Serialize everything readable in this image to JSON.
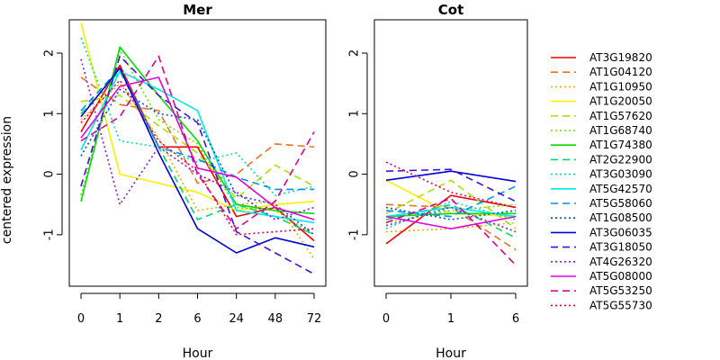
{
  "chart_data": {
    "type": "line",
    "ylabel": "centered expression",
    "xlabel": "Hour",
    "ylim": [
      -1.85,
      2.55
    ],
    "legend_position": "right",
    "series_styles": [
      {
        "name": "AT3G19820",
        "color": "#ee0000",
        "dash": "solid"
      },
      {
        "name": "AT1G04120",
        "color": "#f07020",
        "dash": "long"
      },
      {
        "name": "AT1G10950",
        "color": "#f0b000",
        "dash": "dot"
      },
      {
        "name": "AT1G20050",
        "color": "#f8f000",
        "dash": "solid"
      },
      {
        "name": "AT1G57620",
        "color": "#b0e000",
        "dash": "long"
      },
      {
        "name": "AT1G68740",
        "color": "#70dd00",
        "dash": "dot"
      },
      {
        "name": "AT1G74380",
        "color": "#00dd00",
        "dash": "solid"
      },
      {
        "name": "AT2G22900",
        "color": "#00d870",
        "dash": "long"
      },
      {
        "name": "AT3G03090",
        "color": "#00e0b0",
        "dash": "dot"
      },
      {
        "name": "AT5G42570",
        "color": "#00e8e8",
        "dash": "solid"
      },
      {
        "name": "AT5G58060",
        "color": "#0090f0",
        "dash": "long"
      },
      {
        "name": "AT1G08500",
        "color": "#0050e0",
        "dash": "dot"
      },
      {
        "name": "AT3G06035",
        "color": "#0000dd",
        "dash": "solid"
      },
      {
        "name": "AT3G18050",
        "color": "#4010e0",
        "dash": "long"
      },
      {
        "name": "AT4G26320",
        "color": "#8a18e0",
        "dash": "dot"
      },
      {
        "name": "AT5G08000",
        "color": "#e000e0",
        "dash": "solid"
      },
      {
        "name": "AT5G53250",
        "color": "#e00090",
        "dash": "long"
      },
      {
        "name": "AT5G55730",
        "color": "#e00050",
        "dash": "dot"
      }
    ],
    "panels": [
      {
        "title": "Mer",
        "x": [
          "0",
          "1",
          "2",
          "6",
          "24",
          "48",
          "72"
        ],
        "y_ticks": [
          -1,
          0,
          1,
          2
        ],
        "series": [
          {
            "name": "AT3G19820",
            "values": [
              0.7,
              1.8,
              0.45,
              0.45,
              -0.7,
              -0.55,
              -1.1
            ]
          },
          {
            "name": "AT1G04120",
            "values": [
              1.6,
              1.15,
              1.05,
              -0.15,
              0.0,
              0.5,
              0.45
            ]
          },
          {
            "name": "AT1G10950",
            "values": [
              0.9,
              1.5,
              0.6,
              -0.6,
              -0.5,
              -0.45,
              -1.4
            ]
          },
          {
            "name": "AT1G20050",
            "values": [
              2.5,
              0.0,
              -0.15,
              -0.3,
              -0.6,
              -0.5,
              -0.45
            ]
          },
          {
            "name": "AT1G57620",
            "values": [
              1.2,
              1.3,
              0.8,
              0.35,
              -0.4,
              0.15,
              -0.2
            ]
          },
          {
            "name": "AT1G68740",
            "values": [
              -0.35,
              2.05,
              0.9,
              0.5,
              -0.55,
              -0.6,
              -1.0
            ]
          },
          {
            "name": "AT1G74380",
            "values": [
              -0.45,
              2.1,
              1.3,
              0.55,
              -0.5,
              -0.6,
              -0.65
            ]
          },
          {
            "name": "AT2G22900",
            "values": [
              1.0,
              1.7,
              0.45,
              -0.75,
              -0.5,
              -0.7,
              -1.0
            ]
          },
          {
            "name": "AT3G03090",
            "values": [
              2.25,
              0.55,
              0.45,
              0.2,
              0.35,
              -0.35,
              -0.2
            ]
          },
          {
            "name": "AT5G42570",
            "values": [
              0.4,
              1.7,
              1.4,
              1.05,
              -0.6,
              -0.7,
              -0.8
            ]
          },
          {
            "name": "AT5G58060",
            "values": [
              1.05,
              1.75,
              0.45,
              0.25,
              -0.05,
              -0.25,
              -0.25
            ]
          },
          {
            "name": "AT1G08500",
            "values": [
              0.3,
              1.4,
              1.0,
              0.9,
              -0.35,
              -0.5,
              -1.0
            ]
          },
          {
            "name": "AT3G06035",
            "values": [
              0.95,
              1.75,
              0.35,
              -0.9,
              -1.3,
              -1.05,
              -1.2
            ]
          },
          {
            "name": "AT3G18050",
            "values": [
              -0.2,
              1.95,
              1.3,
              0.85,
              -0.95,
              -1.3,
              -1.65
            ]
          },
          {
            "name": "AT4G26320",
            "values": [
              1.9,
              -0.5,
              0.45,
              0.0,
              -0.3,
              -0.75,
              -0.55
            ]
          },
          {
            "name": "AT5G08000",
            "values": [
              0.6,
              1.45,
              1.6,
              0.1,
              -0.05,
              -0.55,
              -0.75
            ]
          },
          {
            "name": "AT5G53250",
            "values": [
              0.55,
              0.95,
              1.95,
              0.0,
              -0.9,
              -0.45,
              0.7
            ]
          },
          {
            "name": "AT5G55730",
            "values": [
              0.85,
              1.55,
              0.55,
              0.05,
              -1.0,
              -0.95,
              -0.9
            ]
          }
        ]
      },
      {
        "title": "Cot",
        "x": [
          "0",
          "1",
          "6"
        ],
        "y_ticks": [
          -1,
          0,
          1,
          2
        ],
        "series": [
          {
            "name": "AT3G19820",
            "values": [
              -1.15,
              -0.35,
              -0.55
            ]
          },
          {
            "name": "AT1G04120",
            "values": [
              -0.5,
              -0.55,
              -1.25
            ]
          },
          {
            "name": "AT1G10950",
            "values": [
              -0.95,
              -0.9,
              -0.8
            ]
          },
          {
            "name": "AT1G20050",
            "values": [
              -0.1,
              -0.65,
              -0.7
            ]
          },
          {
            "name": "AT1G57620",
            "values": [
              -0.65,
              -0.1,
              -0.9
            ]
          },
          {
            "name": "AT1G68740",
            "values": [
              -0.8,
              -0.6,
              -0.5
            ]
          },
          {
            "name": "AT1G74380",
            "values": [
              -0.7,
              -0.65,
              -0.65
            ]
          },
          {
            "name": "AT2G22900",
            "values": [
              -0.75,
              -0.5,
              -1.05
            ]
          },
          {
            "name": "AT3G03090",
            "values": [
              -0.9,
              -0.45,
              -0.75
            ]
          },
          {
            "name": "AT5G42570",
            "values": [
              -0.7,
              -0.55,
              -0.7
            ]
          },
          {
            "name": "AT5G58060",
            "values": [
              -0.6,
              -0.7,
              -0.2
            ]
          },
          {
            "name": "AT1G08500",
            "values": [
              -0.55,
              -0.75,
              -0.6
            ]
          },
          {
            "name": "AT3G06035",
            "values": [
              -0.1,
              0.05,
              -0.12
            ]
          },
          {
            "name": "AT3G18050",
            "values": [
              0.05,
              0.08,
              -0.45
            ]
          },
          {
            "name": "AT4G26320",
            "values": [
              -0.85,
              -0.55,
              -0.95
            ]
          },
          {
            "name": "AT5G08000",
            "values": [
              -0.7,
              -0.9,
              -0.7
            ]
          },
          {
            "name": "AT5G53250",
            "values": [
              -0.8,
              -0.4,
              -1.5
            ]
          },
          {
            "name": "AT5G55730",
            "values": [
              0.2,
              -0.3,
              -0.55
            ]
          }
        ]
      }
    ]
  }
}
